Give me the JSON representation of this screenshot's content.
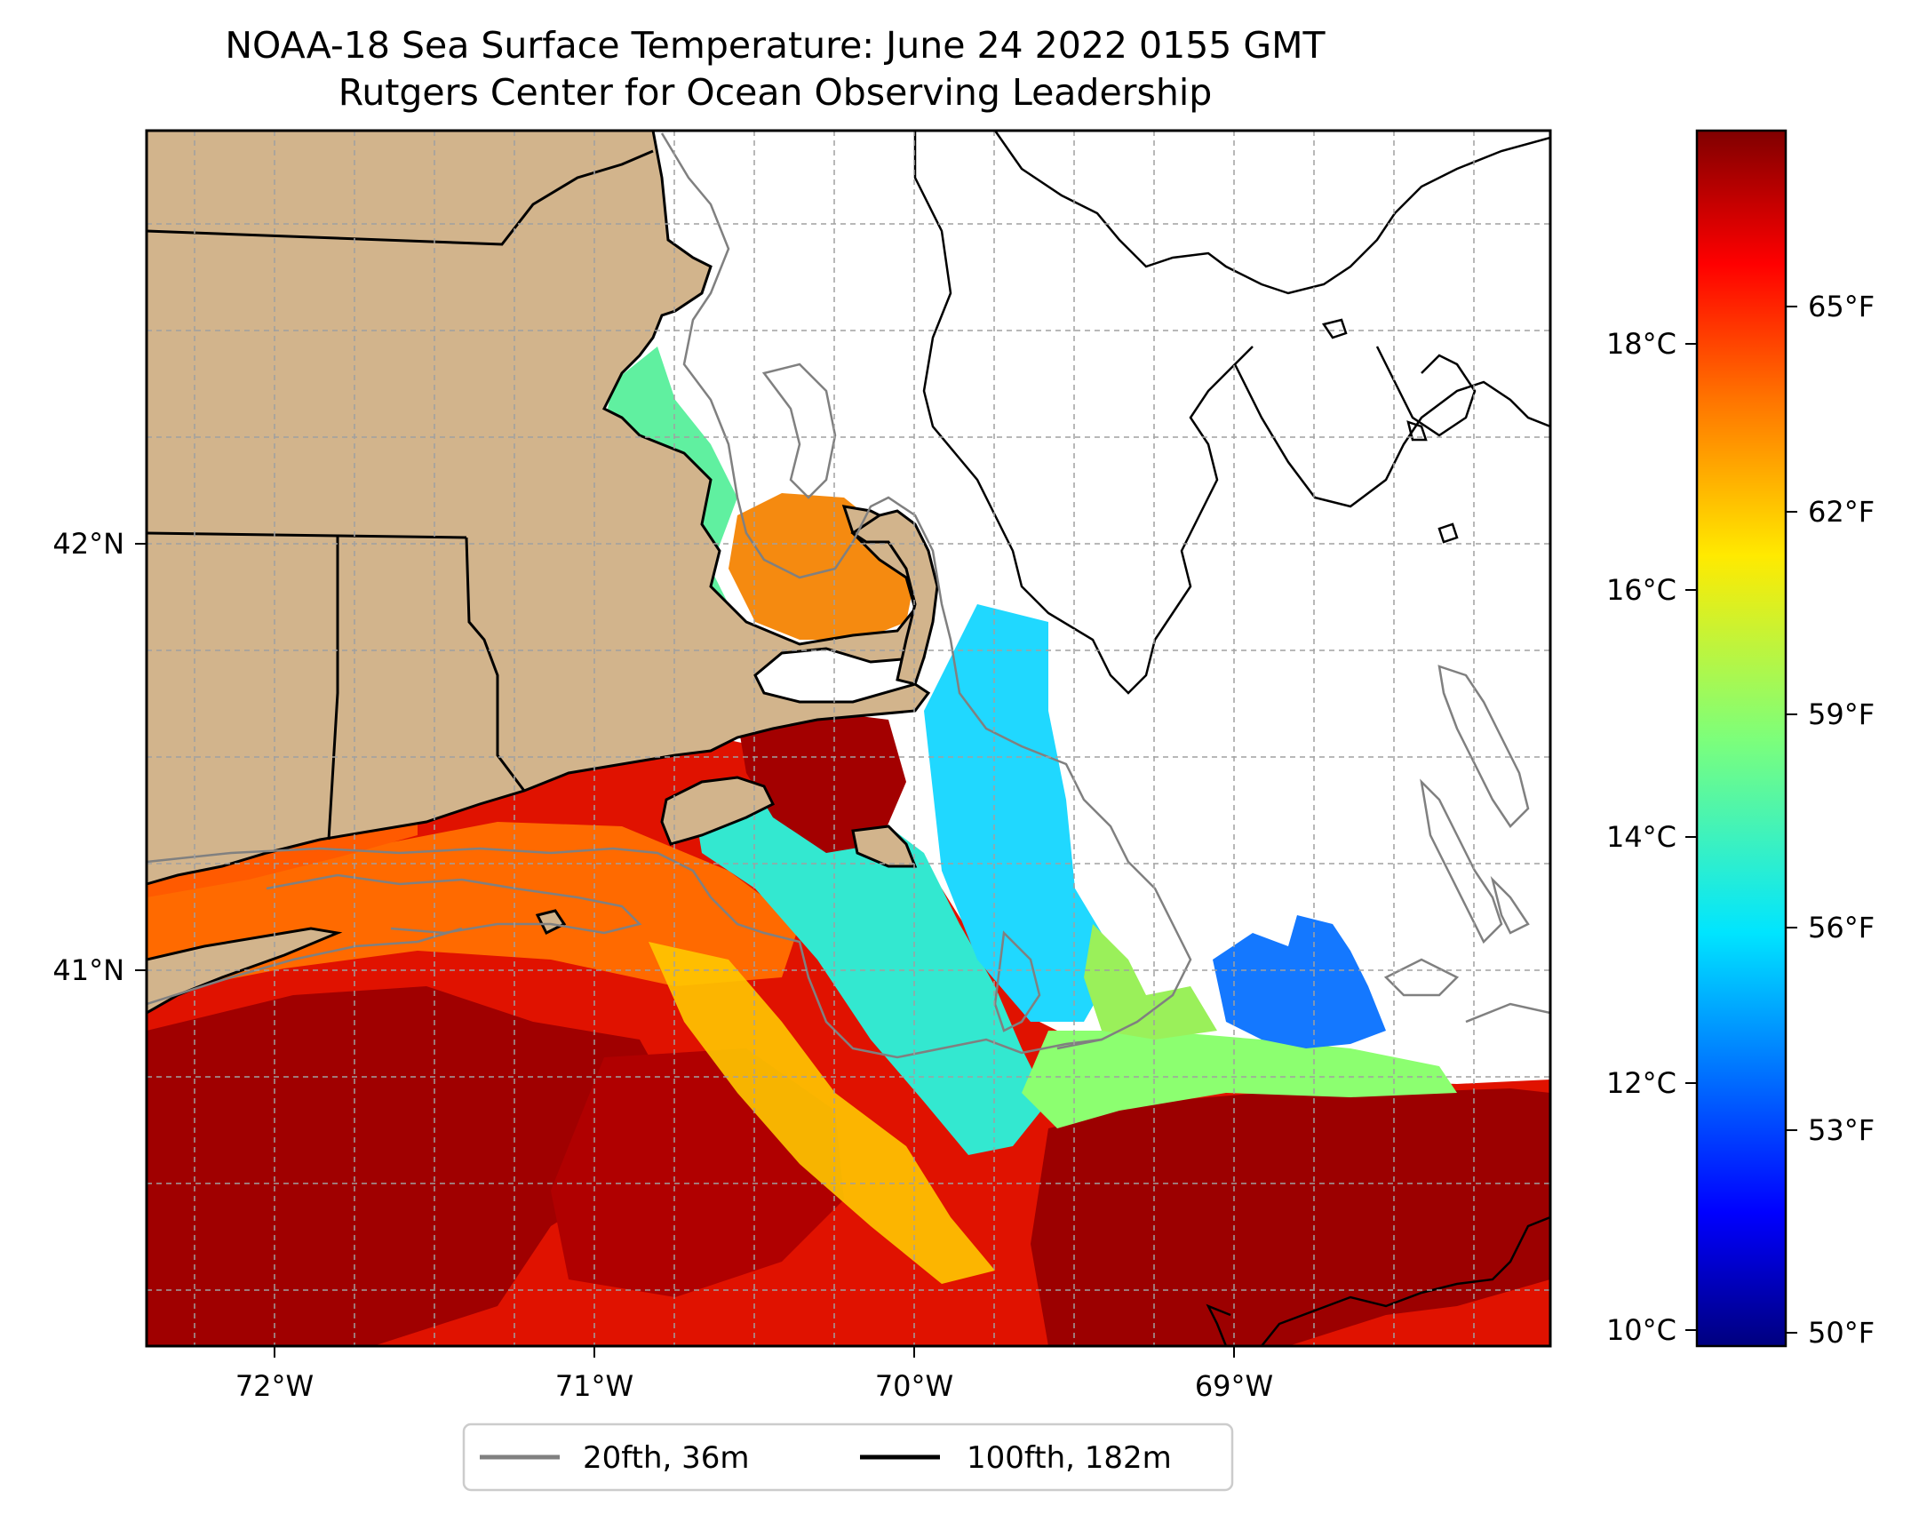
{
  "title_line1": "NOAA-18 Sea Surface Temperature: June 24 2022 0155 GMT",
  "title_line2": "Rutgers Center for Ocean Observing Leadership",
  "map": {
    "x_ticks": [
      "72°W",
      "71°W",
      "70°W",
      "69°W"
    ],
    "y_ticks": [
      "42°N",
      "41°N"
    ],
    "land_color": "#d2b48c",
    "grid": "dashed"
  },
  "colorbar": {
    "celsius_ticks": [
      "10°C",
      "12°C",
      "14°C",
      "16°C",
      "18°C"
    ],
    "fahrenheit_ticks": [
      "50°F",
      "53°F",
      "56°F",
      "59°F",
      "62°F",
      "65°F"
    ],
    "colormap": "jet",
    "range_f": [
      49.5,
      67.5
    ]
  },
  "legend": {
    "items": [
      {
        "label": "20fth, 36m",
        "color": "#808080"
      },
      {
        "label": "100fth, 182m",
        "color": "#000000"
      }
    ]
  }
}
